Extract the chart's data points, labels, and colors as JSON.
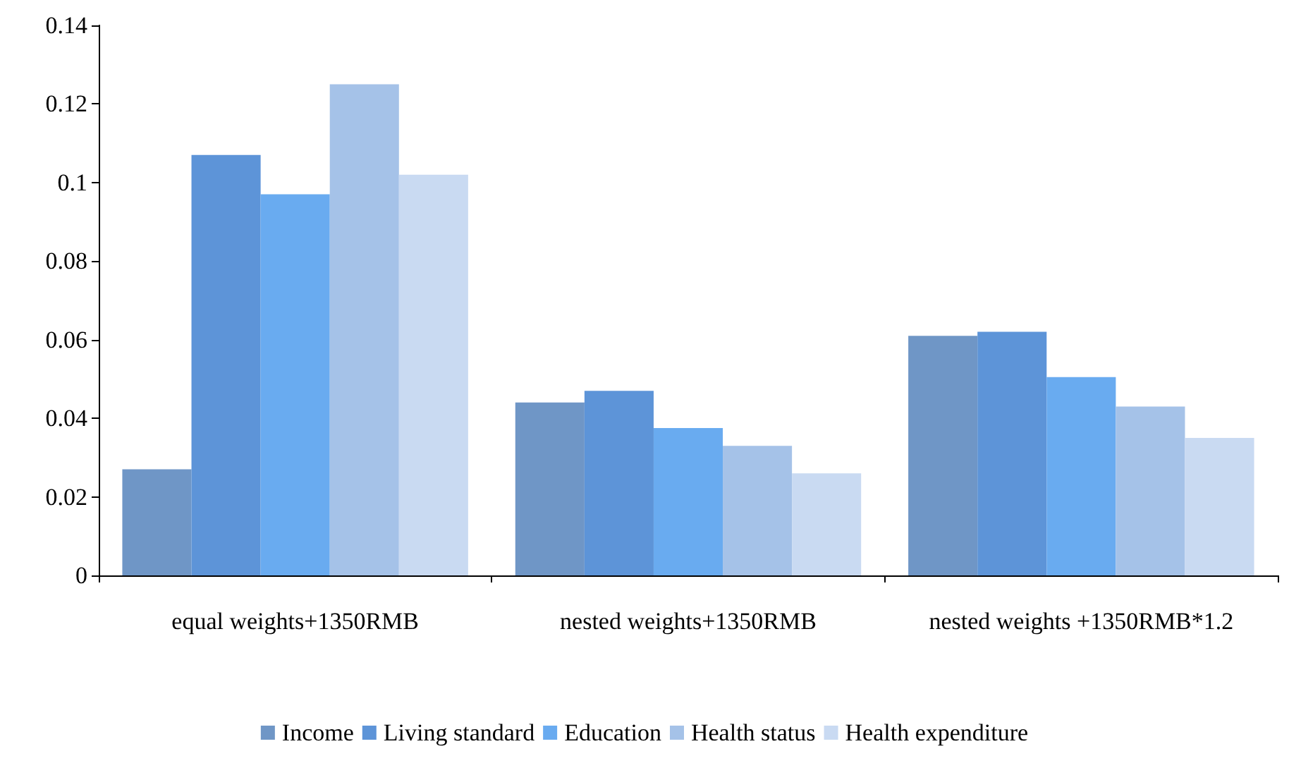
{
  "chart_data": {
    "type": "bar",
    "categories": [
      "equal weights+1350RMB",
      "nested weights+1350RMB",
      "nested weights +1350RMB*1.2"
    ],
    "series": [
      {
        "name": "Income",
        "color": "#6f96c6",
        "values": [
          0.027,
          0.044,
          0.061
        ]
      },
      {
        "name": "Living standard",
        "color": "#5d94d8",
        "values": [
          0.107,
          0.047,
          0.062
        ]
      },
      {
        "name": "Education",
        "color": "#69abf0",
        "values": [
          0.097,
          0.0375,
          0.0505
        ]
      },
      {
        "name": "Health status",
        "color": "#a5c2e8",
        "values": [
          0.125,
          0.033,
          0.043
        ]
      },
      {
        "name": "Health expenditure",
        "color": "#c9daf2",
        "values": [
          0.102,
          0.026,
          0.035
        ]
      }
    ],
    "ylim": [
      0,
      0.14
    ],
    "yticks": [
      0,
      0.02,
      0.04,
      0.06,
      0.08,
      0.1,
      0.12,
      0.14
    ],
    "grid": false,
    "legend": "bottom"
  }
}
